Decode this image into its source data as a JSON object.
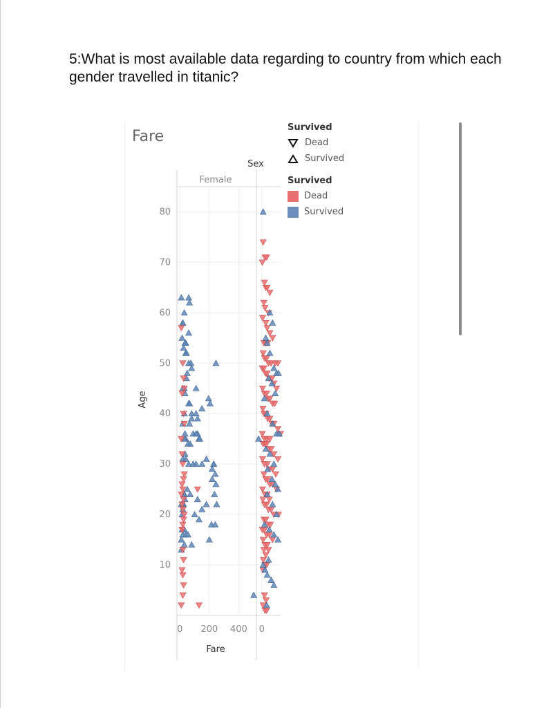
{
  "question": "5:What is most available data regarding to country from which each gender travelled in titanic?",
  "chart_data": {
    "type": "scatter",
    "title": "Fare",
    "xlabel": "Fare",
    "ylabel": "Age",
    "column_header_label": "Sex",
    "facets": [
      {
        "name": "Female",
        "xlim": [
          -20,
          520
        ],
        "x_ticks": [
          0,
          200,
          400
        ]
      },
      {
        "name": "",
        "xlim": [
          -20,
          70
        ],
        "x_ticks": [
          0
        ]
      }
    ],
    "ylim": [
      0,
      85
    ],
    "y_ticks": [
      10,
      20,
      30,
      40,
      50,
      60,
      70,
      80
    ],
    "colors": {
      "Dead": "#e15759",
      "Survived": "#4e79a7"
    },
    "legend": [
      {
        "title": "Survived",
        "kind": "shape",
        "items": [
          {
            "label": "Dead",
            "shape": "triangle-down"
          },
          {
            "label": "Survived",
            "shape": "triangle-up"
          }
        ]
      },
      {
        "title": "Survived",
        "kind": "color",
        "items": [
          {
            "label": "Dead",
            "color": "#e15759"
          },
          {
            "label": "Survived",
            "color": "#4e79a7"
          }
        ]
      }
    ],
    "series": [
      {
        "facet": "Female",
        "name": "Survived",
        "shape": "triangle-up",
        "x": [
          10,
          60,
          65,
          30,
          20,
          20,
          60,
          15,
          40,
          35,
          25,
          40,
          45,
          75,
          60,
          80,
          50,
          45,
          30,
          20,
          35,
          65,
          110,
          60,
          110,
          30,
          80,
          120,
          150,
          80,
          65,
          20,
          35,
          90,
          40,
          30,
          70,
          55,
          120,
          130,
          110,
          135,
          180,
          220,
          195,
          205,
          245,
          215,
          240,
          235,
          30,
          70,
          25,
          20,
          15,
          150,
          180,
          100,
          130,
          250,
          120,
          15,
          30,
          20,
          40,
          55,
          10,
          200,
          30,
          80,
          10,
          35,
          20,
          40,
          60,
          90,
          110,
          150,
          230,
          230,
          240,
          220,
          245,
          50,
          30,
          35,
          10,
          20
        ],
        "y": [
          63,
          63,
          62,
          60,
          58,
          58,
          56,
          55,
          54,
          54,
          53,
          52,
          52,
          50,
          50,
          49,
          48,
          47,
          45,
          45,
          44,
          42,
          45,
          42,
          40,
          40,
          39,
          39,
          41,
          40,
          38,
          38,
          36,
          36,
          35,
          35,
          34,
          34,
          36,
          35,
          36,
          35,
          31,
          29,
          43,
          42,
          50,
          18,
          18,
          24,
          24,
          24,
          22,
          22,
          20,
          21,
          22,
          20,
          19,
          22,
          23,
          17,
          17,
          16,
          16,
          16,
          15,
          15,
          14,
          14,
          13,
          32,
          31,
          31,
          30,
          30,
          30,
          30,
          30,
          30,
          28,
          27,
          26,
          25,
          24,
          23,
          22,
          21
        ]
      },
      {
        "facet": "Female",
        "name": "Dead",
        "shape": "triangle-down",
        "x": [
          10,
          20,
          25,
          30,
          15,
          25,
          30,
          10,
          15,
          20,
          30,
          25,
          15,
          20,
          10,
          25,
          15,
          20,
          30,
          25,
          20,
          15,
          120,
          130,
          25,
          15,
          20,
          25,
          20,
          10,
          15,
          20
        ],
        "y": [
          57,
          50,
          47,
          45,
          44,
          40,
          38,
          35,
          32,
          30,
          28,
          27,
          26,
          25,
          24,
          23,
          22,
          21,
          20,
          19,
          18,
          17,
          25,
          2,
          11,
          9,
          8,
          6,
          4,
          2,
          17,
          13
        ]
      },
      {
        "facet": "",
        "name": "Dead",
        "shape": "triangle-down",
        "x": [
          5,
          12,
          18,
          2,
          10,
          15,
          20,
          30,
          8,
          12,
          25,
          3,
          15,
          20,
          30,
          40,
          8,
          15,
          22,
          5,
          10,
          18,
          25,
          35,
          50,
          60,
          2,
          8,
          14,
          20,
          28,
          38,
          45,
          55,
          3,
          10,
          18,
          25,
          30,
          40,
          48,
          4,
          8,
          15,
          22,
          30,
          38,
          45,
          60,
          70,
          2,
          10,
          20,
          30,
          5,
          12,
          18,
          25,
          35,
          45,
          60,
          3,
          10,
          20,
          28,
          40,
          52,
          8,
          15,
          22,
          30,
          40,
          55,
          3,
          12,
          20,
          28,
          4,
          10,
          18,
          25,
          35,
          45,
          62,
          8,
          15,
          22,
          32,
          2,
          10,
          18,
          28,
          40,
          5,
          12,
          20,
          25,
          8,
          15,
          6,
          12,
          18,
          4,
          10,
          16,
          5,
          12,
          18
        ],
        "y": [
          74,
          71,
          71,
          70,
          66,
          65,
          65,
          64,
          62,
          61,
          60,
          59,
          58,
          57,
          56,
          55,
          54,
          54,
          54,
          52,
          51,
          51,
          50,
          50,
          50,
          50,
          49,
          49,
          48,
          48,
          47,
          47,
          46,
          45,
          45,
          44,
          44,
          43,
          43,
          42,
          42,
          41,
          40,
          40,
          39,
          39,
          38,
          38,
          37,
          36,
          36,
          35,
          35,
          35,
          34,
          34,
          34,
          33,
          33,
          32,
          31,
          31,
          30,
          30,
          29,
          29,
          28,
          28,
          27,
          27,
          26,
          26,
          25,
          25,
          24,
          24,
          23,
          23,
          22,
          22,
          21,
          21,
          20,
          20,
          19,
          19,
          18,
          18,
          17,
          17,
          16,
          16,
          15,
          15,
          14,
          14,
          13,
          13,
          12,
          11,
          10,
          10,
          9,
          4,
          3,
          2,
          1,
          1
        ]
      },
      {
        "facet": "",
        "name": "Survived",
        "shape": "triangle-up",
        "x": [
          5,
          30,
          40,
          15,
          20,
          30,
          45,
          55,
          62,
          25,
          38,
          50,
          10,
          20,
          40,
          55,
          65,
          -12,
          15,
          30,
          45,
          22,
          38,
          50,
          60,
          20,
          40,
          55,
          10,
          28,
          45,
          60,
          25,
          5,
          12,
          20,
          35,
          45,
          -30,
          18
        ],
        "y": [
          80,
          60,
          58,
          55,
          54,
          52,
          49,
          48,
          48,
          47,
          46,
          44,
          43,
          40,
          38,
          36,
          36,
          35,
          33,
          32,
          30,
          29,
          27,
          26,
          25,
          24,
          22,
          20,
          18,
          17,
          16,
          15,
          11,
          10,
          9,
          8,
          7,
          6,
          4,
          2
        ]
      }
    ]
  }
}
